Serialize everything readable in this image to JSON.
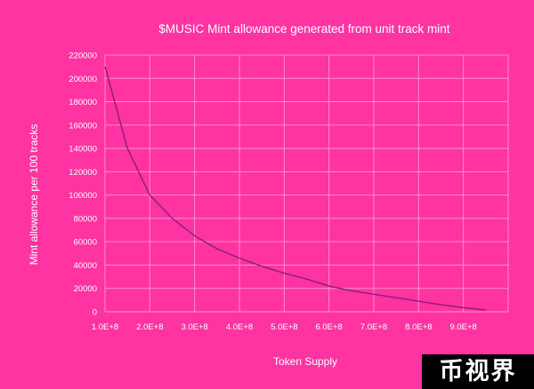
{
  "chart_data": {
    "type": "line",
    "title": "$MUSIC Mint allowance generated from unit track mint",
    "xlabel": "Token Supply",
    "ylabel": "Mint allowance per 100 tracks",
    "xlim": [
      100000000,
      1000000000
    ],
    "ylim": [
      0,
      220000
    ],
    "x_ticks": [
      100000000,
      200000000,
      300000000,
      400000000,
      500000000,
      600000000,
      700000000,
      800000000,
      900000000
    ],
    "x_tick_labels": [
      "1.0E+8",
      "2.0E+8",
      "3.0E+8",
      "4.0E+8",
      "5.0E+8",
      "6.0E+8",
      "7.0E+8",
      "8.0E+8",
      "9.0E+8"
    ],
    "y_ticks": [
      0,
      20000,
      40000,
      60000,
      80000,
      100000,
      120000,
      140000,
      160000,
      180000,
      200000,
      220000
    ],
    "y_tick_labels": [
      "0",
      "20000",
      "40000",
      "60000",
      "80000",
      "100000",
      "120000",
      "140000",
      "160000",
      "180000",
      "200000",
      "220000"
    ],
    "grid": true,
    "series": [
      {
        "color": "#8a1e7a",
        "x": [
          100000000,
          150000000,
          200000000,
          250000000,
          300000000,
          350000000,
          400000000,
          450000000,
          500000000,
          550000000,
          600000000,
          650000000,
          700000000,
          750000000,
          800000000,
          850000000,
          900000000,
          950000000
        ],
        "y": [
          210000,
          140000,
          100000,
          80000,
          65000,
          54000,
          46000,
          39000,
          33000,
          28000,
          22000,
          18000,
          15000,
          12000,
          9000,
          6000,
          3500,
          1500
        ]
      }
    ]
  },
  "watermark": "币视界",
  "colors": {
    "background": "#ff33a1",
    "grid": "#ff8fca",
    "line": "#8a1e7a",
    "text": "#ffffff"
  }
}
